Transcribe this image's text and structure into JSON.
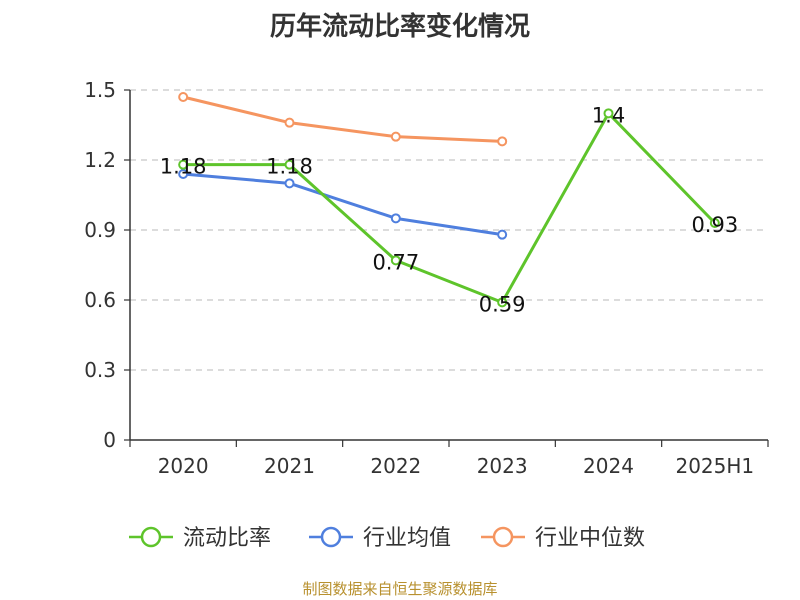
{
  "page_title": "历年流动比率变化情况",
  "footer_text": "制图数据来自恒生聚源数据库",
  "chart_data": {
    "type": "line",
    "title": "历年流动比率变化情况",
    "categories": [
      "2020",
      "2021",
      "2022",
      "2023",
      "2024",
      "2025H1"
    ],
    "ylim": [
      0,
      1.5
    ],
    "yticks": [
      0,
      0.3,
      0.6,
      0.9,
      1.2,
      1.5
    ],
    "ytick_labels": [
      "0",
      "0.3",
      "0.6",
      "0.9",
      "1.2",
      "1.5"
    ],
    "grid": true,
    "legend_position": "bottom",
    "series": [
      {
        "name": "流动比率",
        "color": "#5ec42b",
        "values": [
          1.18,
          1.18,
          0.77,
          0.59,
          1.4,
          0.93
        ],
        "labels": [
          "1.18",
          "1.18",
          "0.77",
          "0.59",
          "1.4",
          "0.93"
        ],
        "show_labels": true
      },
      {
        "name": "行业均值",
        "color": "#4f7fde",
        "values": [
          1.14,
          1.1,
          0.95,
          0.88,
          null,
          null
        ],
        "show_labels": false
      },
      {
        "name": "行业中位数",
        "color": "#f59560",
        "values": [
          1.47,
          1.36,
          1.3,
          1.28,
          null,
          null
        ],
        "show_labels": false
      }
    ]
  }
}
